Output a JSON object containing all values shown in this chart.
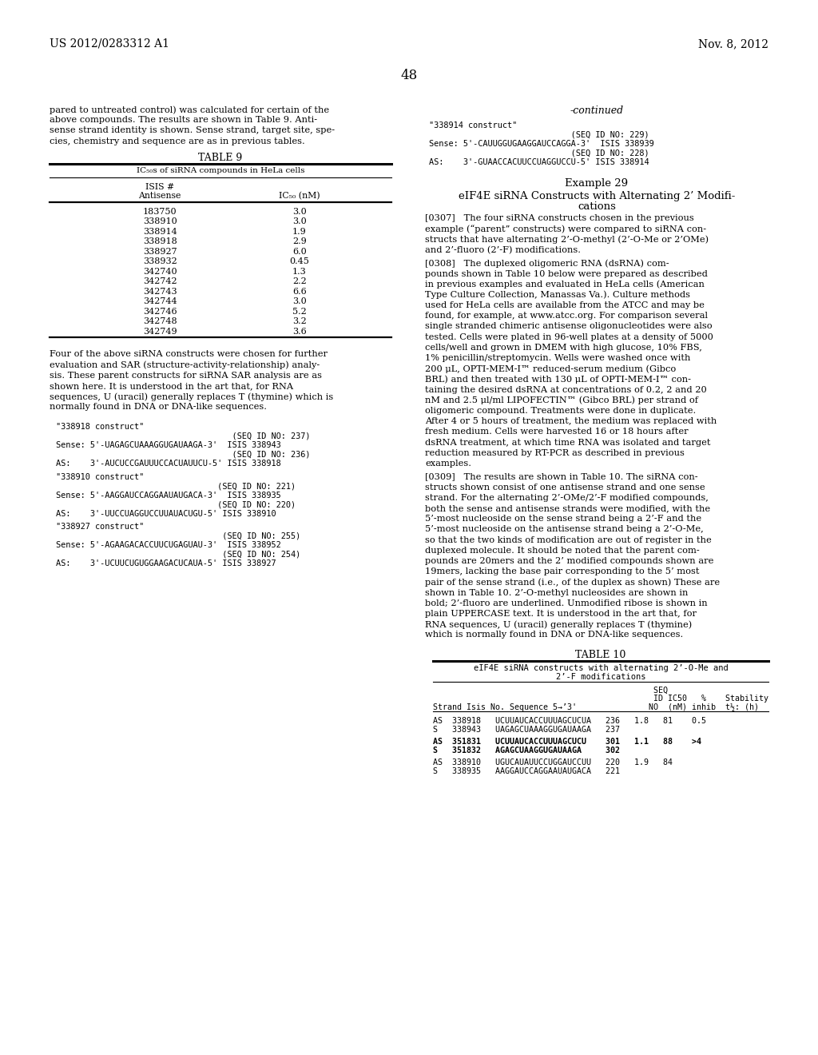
{
  "bg_color": "#ffffff",
  "header_left": "US 2012/0283312 A1",
  "header_right": "Nov. 8, 2012",
  "page_number": "48",
  "table9_title": "TABLE 9",
  "table9_subtitle": "IC₅₀s of siRNA compounds in HeLa cells",
  "table9_rows": [
    [
      "183750",
      "3.0"
    ],
    [
      "338910",
      "3.0"
    ],
    [
      "338914",
      "1.9"
    ],
    [
      "338918",
      "2.9"
    ],
    [
      "338927",
      "6.0"
    ],
    [
      "338932",
      "0.45"
    ],
    [
      "342740",
      "1.3"
    ],
    [
      "342742",
      "2.2"
    ],
    [
      "342743",
      "6.6"
    ],
    [
      "342744",
      "3.0"
    ],
    [
      "342746",
      "5.2"
    ],
    [
      "342748",
      "3.2"
    ],
    [
      "342749",
      "3.6"
    ]
  ],
  "table10_title": "TABLE 10",
  "table10_subtitle_line1": "eIF4E siRNA constructs with alternating 2’-O-Me and",
  "table10_subtitle_line2": "2’-F modifications"
}
